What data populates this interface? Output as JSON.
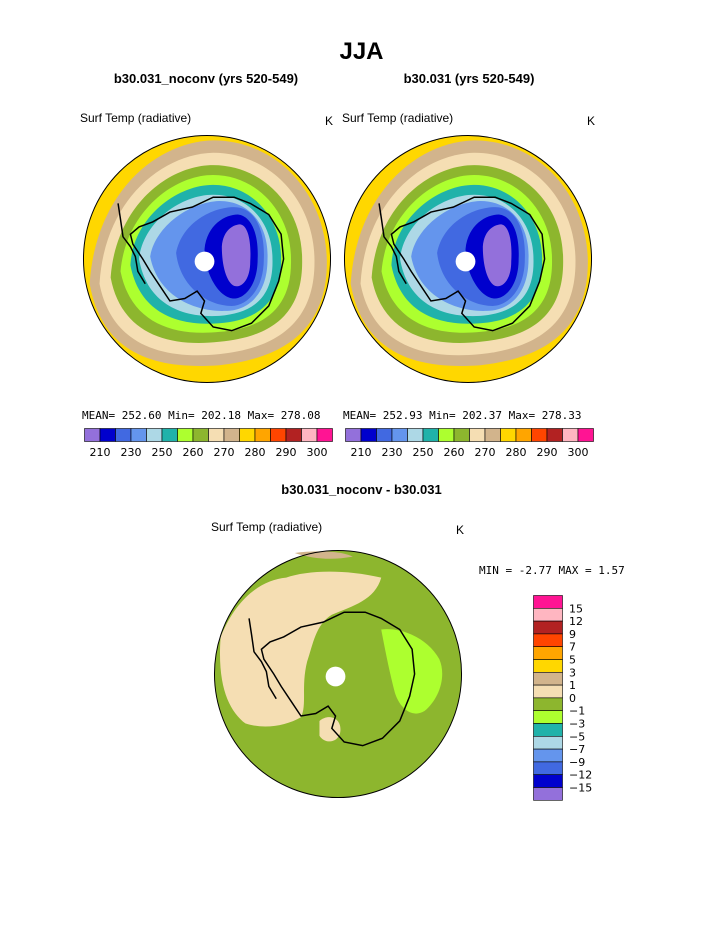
{
  "page_title": "JJA",
  "panels": [
    {
      "title": "b30.031_noconv (yrs 520-549)",
      "field_label": "Surf Temp (radiative)",
      "units": "K",
      "stats": {
        "mean_label": "MEAN=",
        "mean": "252.60",
        "min_label": "Min=",
        "min": "202.18",
        "max_label": "Max=",
        "max": "278.08"
      },
      "colorbar": {
        "colors": [
          "#9370DB",
          "#0000CD",
          "#4169E1",
          "#6495ED",
          "#ADD8E6",
          "#20B2AA",
          "#ADFF2F",
          "#8DB62E",
          "#F5DEB3",
          "#D2B48C",
          "#FFD700",
          "#FFA500",
          "#FF4500",
          "#B22222",
          "#FFB6C1",
          "#FF1493"
        ],
        "labels": [
          "210",
          "230",
          "250",
          "260",
          "270",
          "280",
          "290",
          "300"
        ]
      }
    },
    {
      "title": "b30.031 (yrs 520-549)",
      "field_label": "Surf Temp (radiative)",
      "units": "K",
      "stats": {
        "mean_label": "MEAN=",
        "mean": "252.93",
        "min_label": "Min=",
        "min": "202.37",
        "max_label": "Max=",
        "max": "278.33"
      },
      "colorbar": {
        "colors": [
          "#9370DB",
          "#0000CD",
          "#4169E1",
          "#6495ED",
          "#ADD8E6",
          "#20B2AA",
          "#ADFF2F",
          "#8DB62E",
          "#F5DEB3",
          "#D2B48C",
          "#FFD700",
          "#FFA500",
          "#FF4500",
          "#B22222",
          "#FFB6C1",
          "#FF1493"
        ],
        "labels": [
          "210",
          "230",
          "250",
          "260",
          "270",
          "280",
          "290",
          "300"
        ]
      }
    }
  ],
  "diff_panel": {
    "title": "b30.031_noconv - b30.031",
    "field_label": "Surf Temp (radiative)",
    "units": "K",
    "stats": {
      "min_label": "MIN =",
      "min": "-2.77",
      "max_label": "MAX =",
      "max": "1.57"
    },
    "colorbar": {
      "colors_top_to_bottom": [
        "#FF1493",
        "#FFB6C1",
        "#B22222",
        "#FF4500",
        "#FFA500",
        "#FFD700",
        "#D2B48C",
        "#F5DEB3",
        "#8DB62E",
        "#ADFF2F",
        "#20B2AA",
        "#ADD8E6",
        "#6495ED",
        "#4169E1",
        "#0000CD",
        "#9370DB"
      ],
      "labels_top_to_bottom": [
        "15",
        "12",
        "9",
        "7",
        "5",
        "3",
        "1",
        "0",
        "−1",
        "−3",
        "−5",
        "−7",
        "−9",
        "−12",
        "−15"
      ]
    }
  },
  "chart_data": [
    {
      "type": "heatmap",
      "projection": "south polar stereographic",
      "title": "b30.031_noconv (yrs 520-549)",
      "variable": "Surf Temp (radiative)",
      "units": "K",
      "mean": 252.6,
      "min": 202.18,
      "max": 278.08,
      "contour_levels": [
        210,
        220,
        230,
        240,
        250,
        255,
        260,
        265,
        270,
        275,
        280,
        285,
        290,
        295,
        300
      ]
    },
    {
      "type": "heatmap",
      "projection": "south polar stereographic",
      "title": "b30.031 (yrs 520-549)",
      "variable": "Surf Temp (radiative)",
      "units": "K",
      "mean": 252.93,
      "min": 202.37,
      "max": 278.33,
      "contour_levels": [
        210,
        220,
        230,
        240,
        250,
        255,
        260,
        265,
        270,
        275,
        280,
        285,
        290,
        295,
        300
      ]
    },
    {
      "type": "heatmap",
      "projection": "south polar stereographic",
      "title": "b30.031_noconv - b30.031",
      "variable": "Surf Temp (radiative)",
      "units": "K",
      "min": -2.77,
      "max": 1.57,
      "contour_levels": [
        -15,
        -12,
        -9,
        -7,
        -5,
        -3,
        -1,
        0,
        1,
        3,
        5,
        7,
        9,
        12,
        15
      ]
    }
  ]
}
